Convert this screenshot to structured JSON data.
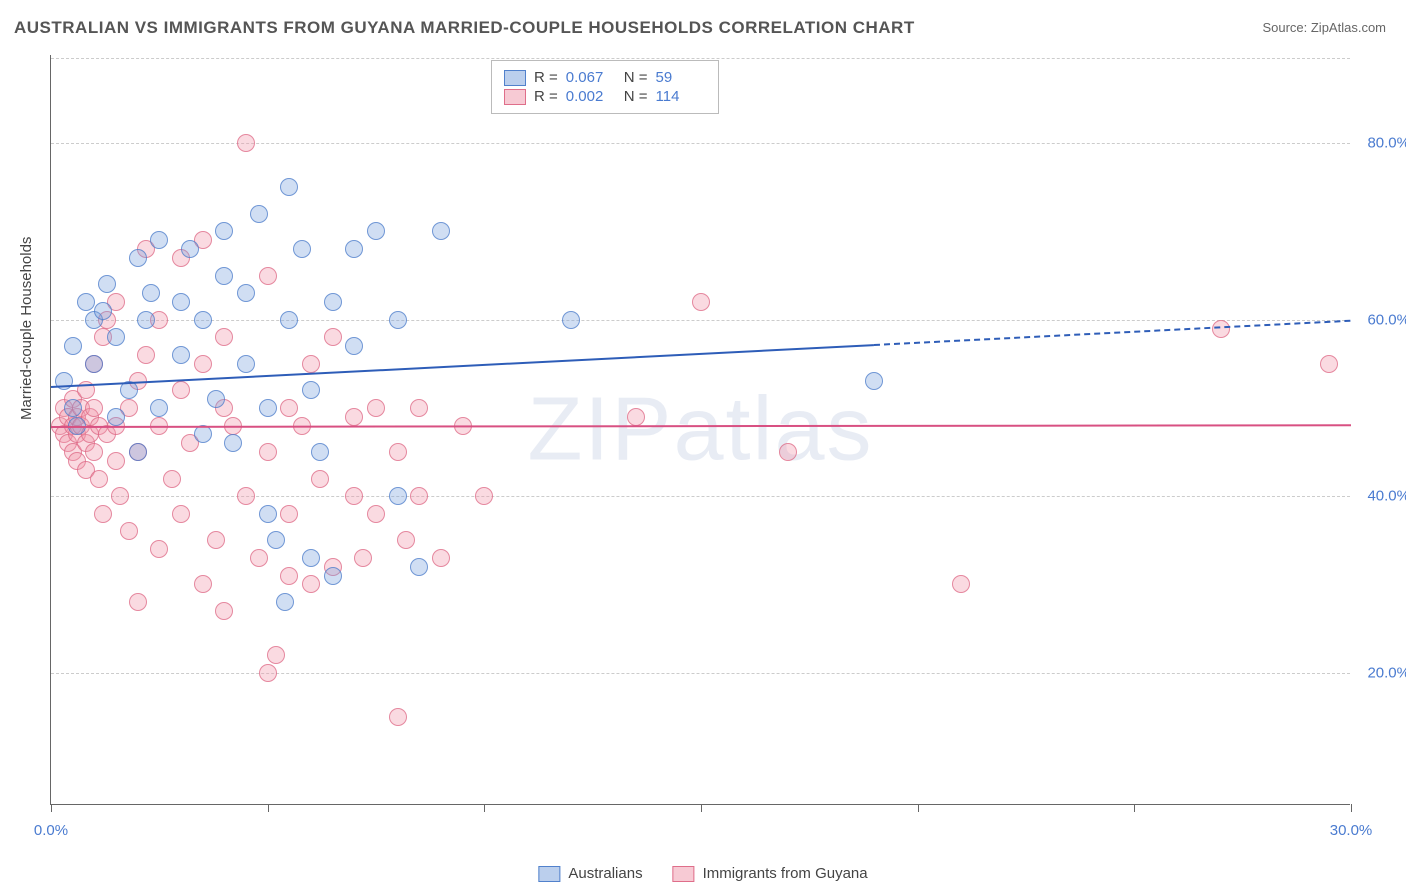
{
  "title": "AUSTRALIAN VS IMMIGRANTS FROM GUYANA MARRIED-COUPLE HOUSEHOLDS CORRELATION CHART",
  "source": "Source: ZipAtlas.com",
  "watermark": "ZIPatlas",
  "ylabel": "Married-couple Households",
  "chart": {
    "type": "scatter",
    "xlim": [
      0,
      30
    ],
    "ylim": [
      5,
      90
    ],
    "xticks": [
      0,
      5,
      10,
      15,
      20,
      25,
      30
    ],
    "xtick_labels": {
      "0": "0.0%",
      "30": "30.0%"
    },
    "yticks": [
      20,
      40,
      60,
      80
    ],
    "ytick_labels": [
      "20.0%",
      "40.0%",
      "60.0%",
      "80.0%"
    ],
    "grid_color": "#cccccc",
    "background_color": "#ffffff",
    "marker_size": 18,
    "series": [
      {
        "name": "Australians",
        "color_fill": "rgba(120,160,220,0.35)",
        "color_stroke": "rgba(70,120,200,0.7)",
        "R": "0.067",
        "N": "59",
        "regression": {
          "y_start": 52.5,
          "y_end": 60,
          "solid_until_x": 19,
          "color": "#2e5db8"
        },
        "points": [
          [
            0.3,
            53
          ],
          [
            0.5,
            50
          ],
          [
            0.5,
            57
          ],
          [
            0.6,
            48
          ],
          [
            0.8,
            62
          ],
          [
            1.0,
            55
          ],
          [
            1.0,
            60
          ],
          [
            1.2,
            61
          ],
          [
            1.3,
            64
          ],
          [
            1.5,
            49
          ],
          [
            1.5,
            58
          ],
          [
            1.8,
            52
          ],
          [
            2.0,
            67
          ],
          [
            2.0,
            45
          ],
          [
            2.2,
            60
          ],
          [
            2.3,
            63
          ],
          [
            2.5,
            50
          ],
          [
            2.5,
            69
          ],
          [
            3.0,
            56
          ],
          [
            3.0,
            62
          ],
          [
            3.2,
            68
          ],
          [
            3.5,
            47
          ],
          [
            3.5,
            60
          ],
          [
            3.8,
            51
          ],
          [
            4.0,
            65
          ],
          [
            4.0,
            70
          ],
          [
            4.2,
            46
          ],
          [
            4.5,
            55
          ],
          [
            4.5,
            63
          ],
          [
            4.8,
            72
          ],
          [
            5.0,
            50
          ],
          [
            5.0,
            38
          ],
          [
            5.2,
            35
          ],
          [
            5.4,
            28
          ],
          [
            5.5,
            60
          ],
          [
            5.5,
            75
          ],
          [
            5.8,
            68
          ],
          [
            6.0,
            33
          ],
          [
            6.0,
            52
          ],
          [
            6.2,
            45
          ],
          [
            6.5,
            31
          ],
          [
            6.5,
            62
          ],
          [
            7.0,
            57
          ],
          [
            7.0,
            68
          ],
          [
            7.5,
            70
          ],
          [
            8.0,
            40
          ],
          [
            8.0,
            60
          ],
          [
            8.5,
            32
          ],
          [
            9.0,
            70
          ],
          [
            12.0,
            60
          ],
          [
            19.0,
            53
          ]
        ]
      },
      {
        "name": "Immigrants from Guyana",
        "color_fill": "rgba(240,150,170,0.35)",
        "color_stroke": "rgba(220,100,130,0.7)",
        "R": "0.002",
        "N": "114",
        "regression": {
          "y_start": 48,
          "y_end": 48.2,
          "solid_until_x": 30,
          "color": "#d85082"
        },
        "points": [
          [
            0.2,
            48
          ],
          [
            0.3,
            47
          ],
          [
            0.3,
            50
          ],
          [
            0.4,
            46
          ],
          [
            0.4,
            49
          ],
          [
            0.5,
            48
          ],
          [
            0.5,
            45
          ],
          [
            0.5,
            51
          ],
          [
            0.6,
            47
          ],
          [
            0.6,
            49
          ],
          [
            0.6,
            44
          ],
          [
            0.7,
            48
          ],
          [
            0.7,
            50
          ],
          [
            0.8,
            46
          ],
          [
            0.8,
            43
          ],
          [
            0.8,
            52
          ],
          [
            0.9,
            47
          ],
          [
            0.9,
            49
          ],
          [
            1.0,
            45
          ],
          [
            1.0,
            50
          ],
          [
            1.0,
            55
          ],
          [
            1.1,
            42
          ],
          [
            1.1,
            48
          ],
          [
            1.2,
            38
          ],
          [
            1.2,
            58
          ],
          [
            1.3,
            47
          ],
          [
            1.3,
            60
          ],
          [
            1.5,
            44
          ],
          [
            1.5,
            48
          ],
          [
            1.5,
            62
          ],
          [
            1.6,
            40
          ],
          [
            1.8,
            36
          ],
          [
            1.8,
            50
          ],
          [
            2.0,
            53
          ],
          [
            2.0,
            28
          ],
          [
            2.0,
            45
          ],
          [
            2.2,
            56
          ],
          [
            2.2,
            68
          ],
          [
            2.5,
            34
          ],
          [
            2.5,
            48
          ],
          [
            2.5,
            60
          ],
          [
            2.8,
            42
          ],
          [
            3.0,
            67
          ],
          [
            3.0,
            38
          ],
          [
            3.0,
            52
          ],
          [
            3.2,
            46
          ],
          [
            3.5,
            30
          ],
          [
            3.5,
            55
          ],
          [
            3.5,
            69
          ],
          [
            3.8,
            35
          ],
          [
            4.0,
            50
          ],
          [
            4.0,
            58
          ],
          [
            4.0,
            27
          ],
          [
            4.2,
            48
          ],
          [
            4.5,
            40
          ],
          [
            4.5,
            80
          ],
          [
            4.8,
            33
          ],
          [
            5.0,
            20
          ],
          [
            5.0,
            45
          ],
          [
            5.0,
            65
          ],
          [
            5.2,
            22
          ],
          [
            5.5,
            31
          ],
          [
            5.5,
            50
          ],
          [
            5.5,
            38
          ],
          [
            5.8,
            48
          ],
          [
            6.0,
            30
          ],
          [
            6.0,
            55
          ],
          [
            6.2,
            42
          ],
          [
            6.5,
            32
          ],
          [
            6.5,
            58
          ],
          [
            7.0,
            40
          ],
          [
            7.0,
            49
          ],
          [
            7.2,
            33
          ],
          [
            7.5,
            50
          ],
          [
            7.5,
            38
          ],
          [
            8.0,
            45
          ],
          [
            8.0,
            15
          ],
          [
            8.2,
            35
          ],
          [
            8.5,
            40
          ],
          [
            8.5,
            50
          ],
          [
            9.0,
            33
          ],
          [
            9.5,
            48
          ],
          [
            10.0,
            40
          ],
          [
            13.5,
            49
          ],
          [
            15.0,
            62
          ],
          [
            17.0,
            45
          ],
          [
            21.0,
            30
          ],
          [
            27.0,
            59
          ],
          [
            29.5,
            55
          ]
        ]
      }
    ]
  },
  "bottom_legend": [
    {
      "swatch": "blue",
      "label": "Australians"
    },
    {
      "swatch": "pink",
      "label": "Immigrants from Guyana"
    }
  ]
}
